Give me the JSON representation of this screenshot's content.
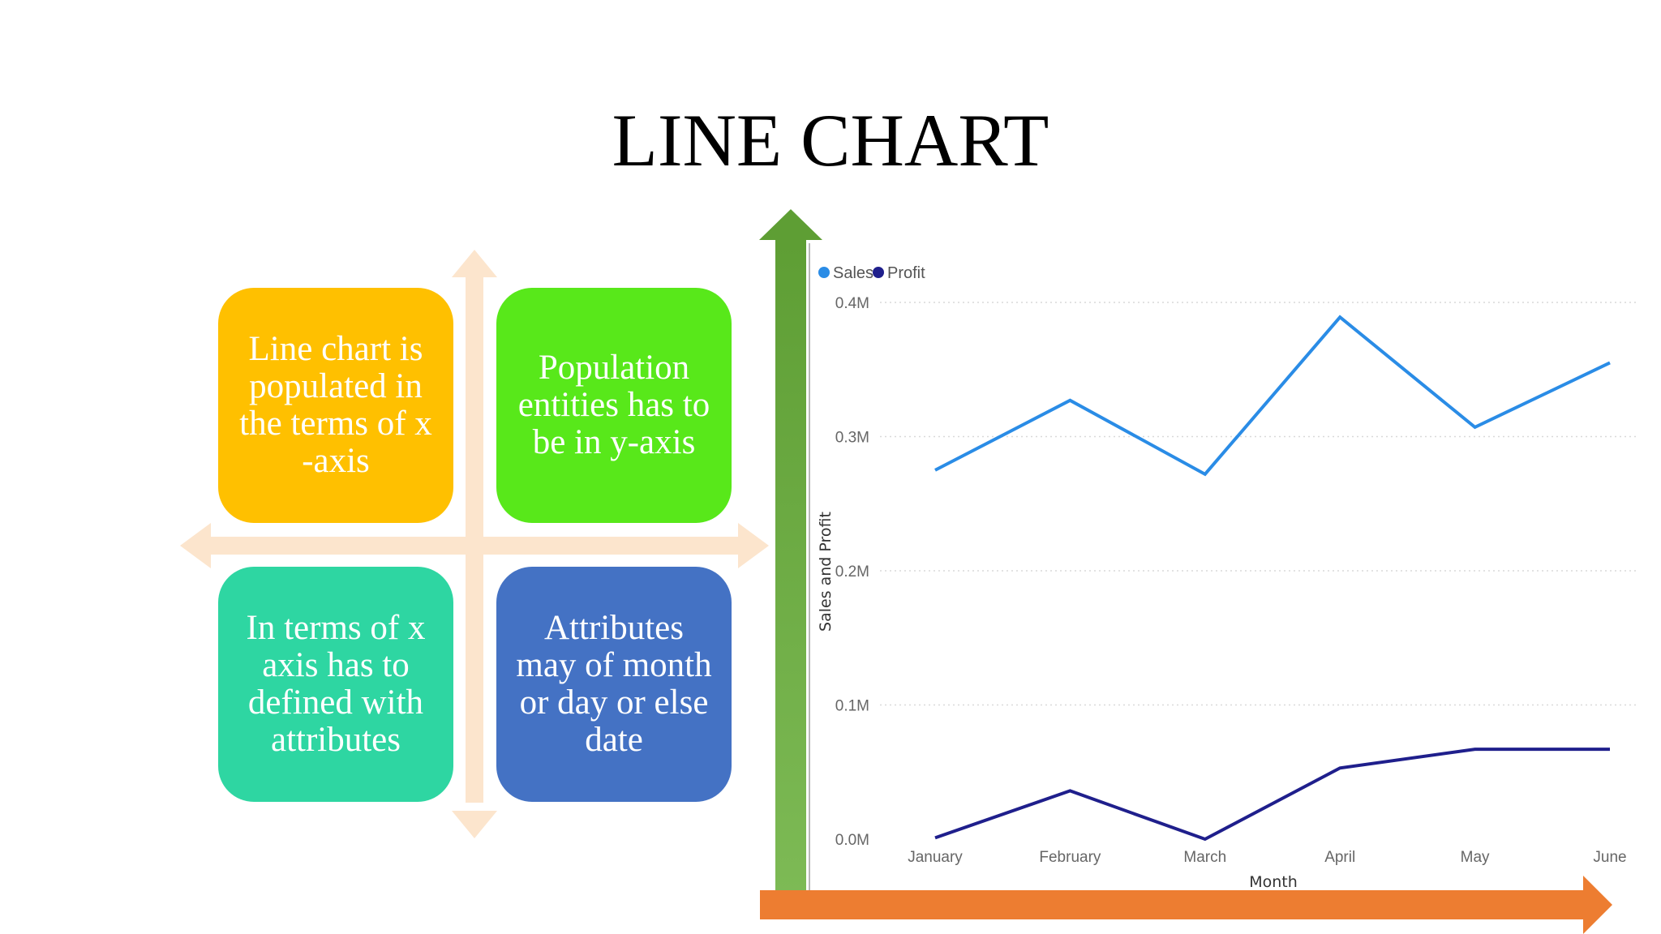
{
  "slide": {
    "title": "LINE CHART"
  },
  "matrix": {
    "top_left": "Line chart is populated in the terms of x -axis",
    "top_right": "Population entities has to be in y-axis",
    "bottom_left": "In terms of x axis has to defined with attributes",
    "bottom_right": "Attributes may of month or day or else date",
    "colors": {
      "top_left": "#FFC000",
      "top_right": "#58E81A",
      "bottom_left": "#2ED6A2",
      "bottom_right": "#4472C4",
      "cross_arrows": "#FCE5CD"
    }
  },
  "chart_data": {
    "type": "line",
    "categories": [
      "January",
      "February",
      "March",
      "April",
      "May",
      "June"
    ],
    "series": [
      {
        "name": "Sales",
        "values": [
          0.275,
          0.327,
          0.272,
          0.389,
          0.307,
          0.355
        ],
        "color": "#2A8CE6"
      },
      {
        "name": "Profit",
        "values": [
          0.001,
          0.036,
          0.0,
          0.053,
          0.067,
          0.067
        ],
        "color": "#1F1F8C"
      }
    ],
    "xlabel": "Month",
    "ylabel": "Sales and Profit",
    "ylim": [
      0,
      0.4
    ],
    "yticks": [
      "0.0M",
      "0.1M",
      "0.2M",
      "0.3M",
      "0.4M"
    ],
    "grid": true,
    "legend": "top-left",
    "axis_arrow_colors": {
      "y": "#6AAA3E",
      "x": "#ED7D31"
    }
  }
}
